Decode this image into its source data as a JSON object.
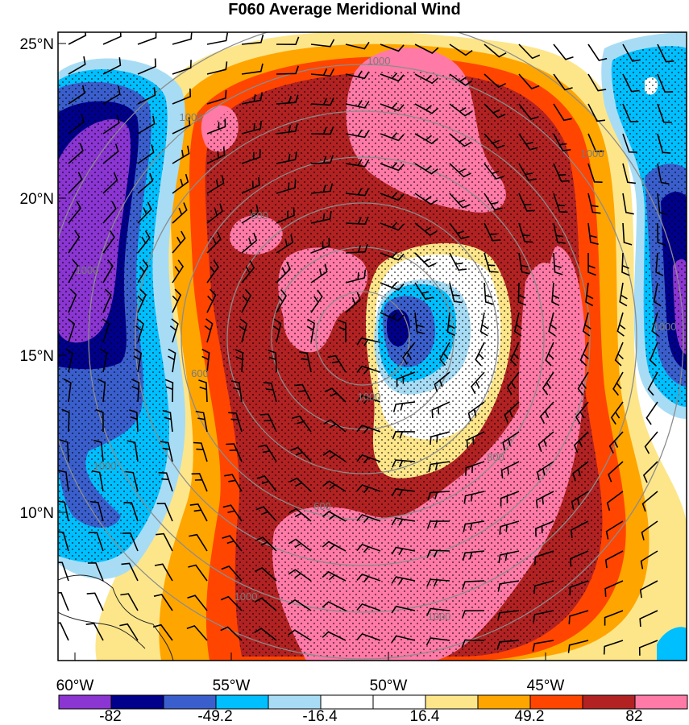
{
  "title": "F060 Average Meridional Wind",
  "map": {
    "lat_labels": [
      "25°N",
      "20°N",
      "15°N",
      "10°N"
    ],
    "lon_labels": [
      "60°W",
      "55°W",
      "50°W",
      "45°W"
    ],
    "contour_labels": [
      "1000",
      "1000",
      "1000",
      "600",
      "600",
      "600",
      "800",
      "1000",
      "1000",
      "1000",
      "1000",
      "1000",
      "1000"
    ]
  },
  "colorbar": {
    "colors": [
      "#8b35d3",
      "#00008b",
      "#3a5fcd",
      "#00bfff",
      "#a8dcf5",
      "#ffffff",
      "#ffffff",
      "#fde68a",
      "#ffa500",
      "#ff4500",
      "#b22222",
      "#ff7aa7"
    ],
    "tick_labels": [
      "-82",
      "-49.2",
      "-16.4",
      "16.4",
      "49.2",
      "82"
    ]
  }
}
